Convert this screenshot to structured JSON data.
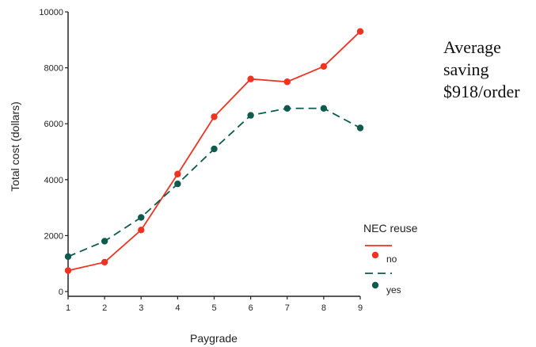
{
  "chart_data": {
    "type": "line",
    "title": "",
    "xlabel": "Paygrade",
    "ylabel": "Total cost (dollars)",
    "x": [
      1,
      2,
      3,
      4,
      5,
      6,
      7,
      8,
      9
    ],
    "xlim": [
      1,
      9
    ],
    "ylim": [
      0,
      10000
    ],
    "x_ticks": [
      "1",
      "2",
      "3",
      "4",
      "5",
      "6",
      "7",
      "8",
      "9"
    ],
    "y_ticks": [
      "0",
      "2000",
      "4000",
      "6000",
      "8000",
      "10000"
    ],
    "grid": false,
    "legend": {
      "title": "NEC reuse",
      "placement": "right"
    },
    "series": [
      {
        "name": "no",
        "color": "#ee3322",
        "line_style": "solid",
        "values": [
          750,
          1050,
          2200,
          4200,
          6250,
          7600,
          7500,
          8050,
          9300
        ]
      },
      {
        "name": "yes",
        "color": "#0e5a4e",
        "line_style": "dashed",
        "values": [
          1250,
          1800,
          2650,
          3850,
          5100,
          6300,
          6550,
          6550,
          5850
        ]
      }
    ],
    "annotation": [
      "Average",
      "saving",
      "$918/order"
    ]
  }
}
